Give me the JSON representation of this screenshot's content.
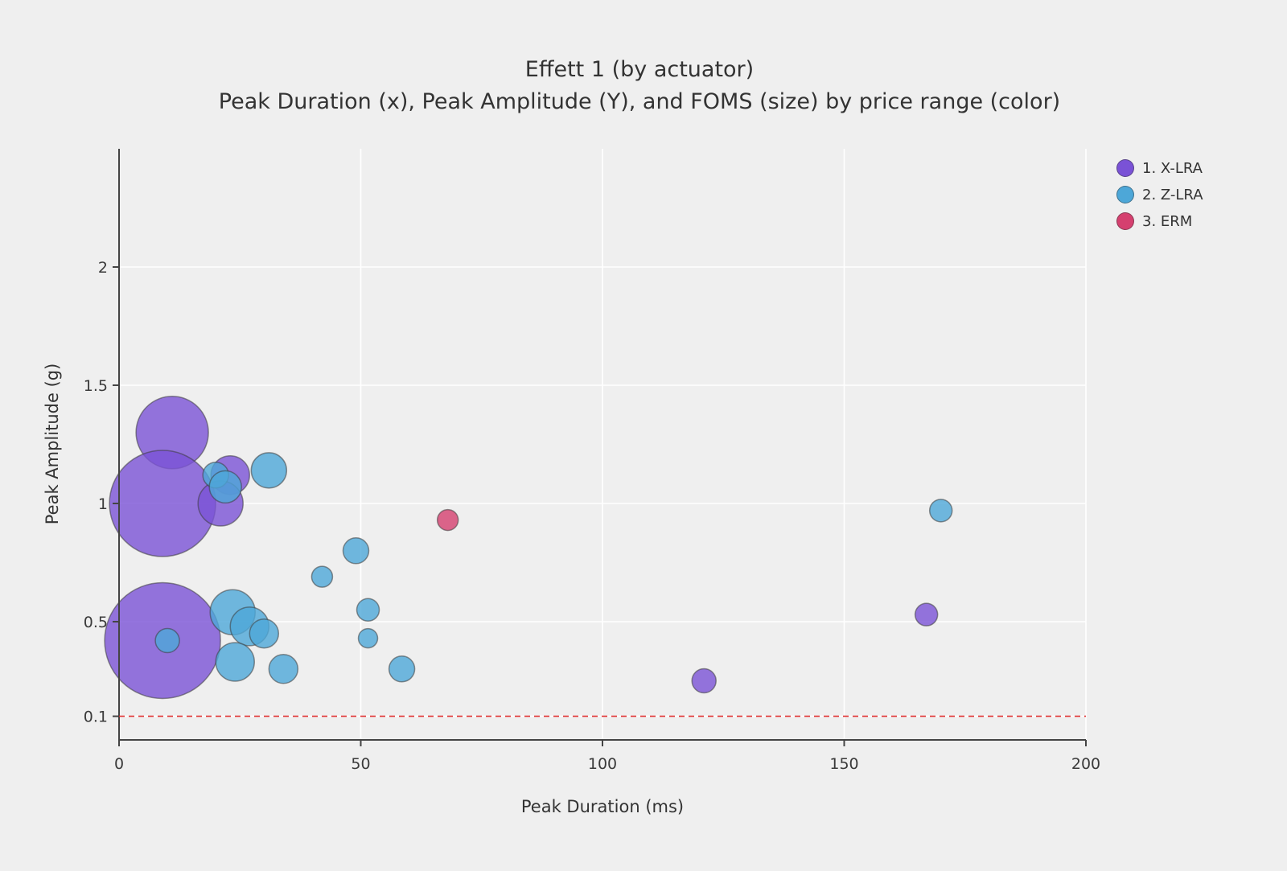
{
  "chart_data": {
    "type": "scatter",
    "title": "Effett 1 (by actuator)",
    "subtitle": "Peak Duration (x), Peak Amplitude (Y), and FOMS (size) by price range (color)",
    "xlabel": "Peak Duration (ms)",
    "ylabel": "Peak Amplitude (g)",
    "xlim": [
      0,
      200
    ],
    "ylim": [
      0,
      2.5
    ],
    "x_ticks": [
      0,
      50,
      100,
      150,
      200
    ],
    "y_ticks": [
      0.1,
      0.5,
      1,
      1.5,
      2
    ],
    "grid": true,
    "legend_position": "top-right",
    "background": "#efefef",
    "gridline_color": "#ffffff",
    "axis_color": "#444444",
    "threshold_line": {
      "y": 0.1,
      "color": "#e03131",
      "style": "dashed"
    },
    "series": [
      {
        "name": "1. X-LRA",
        "color": "#7a52d6",
        "points": [
          {
            "x": 11,
            "y": 1.3,
            "r": 45
          },
          {
            "x": 9,
            "y": 1.0,
            "r": 66
          },
          {
            "x": 23,
            "y": 1.12,
            "r": 24
          },
          {
            "x": 21,
            "y": 1.0,
            "r": 28
          },
          {
            "x": 9,
            "y": 0.42,
            "r": 72
          },
          {
            "x": 121,
            "y": 0.25,
            "r": 15
          },
          {
            "x": 167,
            "y": 0.53,
            "r": 14
          }
        ]
      },
      {
        "name": "2. Z-LRA",
        "color": "#4da7d8",
        "points": [
          {
            "x": 20,
            "y": 1.12,
            "r": 16
          },
          {
            "x": 22,
            "y": 1.07,
            "r": 20
          },
          {
            "x": 31,
            "y": 1.14,
            "r": 22
          },
          {
            "x": 10,
            "y": 0.42,
            "r": 15
          },
          {
            "x": 23.5,
            "y": 0.54,
            "r": 28
          },
          {
            "x": 27,
            "y": 0.48,
            "r": 24
          },
          {
            "x": 30,
            "y": 0.45,
            "r": 18
          },
          {
            "x": 24,
            "y": 0.33,
            "r": 24
          },
          {
            "x": 34,
            "y": 0.3,
            "r": 18
          },
          {
            "x": 42,
            "y": 0.69,
            "r": 13
          },
          {
            "x": 49,
            "y": 0.8,
            "r": 16
          },
          {
            "x": 51.5,
            "y": 0.55,
            "r": 14
          },
          {
            "x": 51.5,
            "y": 0.43,
            "r": 12
          },
          {
            "x": 58.5,
            "y": 0.3,
            "r": 16
          },
          {
            "x": 170,
            "y": 0.97,
            "r": 14
          }
        ]
      },
      {
        "name": "3. ERM",
        "color": "#d5406f",
        "points": [
          {
            "x": 68,
            "y": 0.93,
            "r": 13
          }
        ]
      }
    ]
  }
}
